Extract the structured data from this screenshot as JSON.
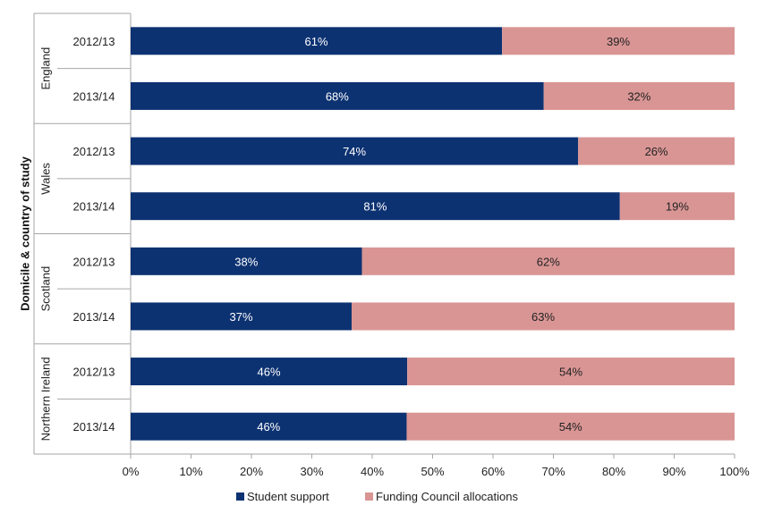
{
  "chart_data": {
    "type": "bar",
    "orientation": "horizontal",
    "stacked": true,
    "percent_stacked": true,
    "ylabel": "Domicile & country of study",
    "xlabel": "",
    "xlim": [
      0,
      100
    ],
    "x_ticks": [
      "0%",
      "10%",
      "20%",
      "30%",
      "40%",
      "50%",
      "60%",
      "70%",
      "80%",
      "90%",
      "100%"
    ],
    "grid": false,
    "legend_position": "bottom",
    "groups": [
      {
        "name": "England",
        "rows": [
          0,
          1
        ]
      },
      {
        "name": "Wales",
        "rows": [
          2,
          3
        ]
      },
      {
        "name": "Scotland",
        "rows": [
          4,
          5
        ]
      },
      {
        "name": "Northern Ireland",
        "rows": [
          6,
          7
        ]
      }
    ],
    "categories": [
      "2012/13",
      "2013/14",
      "2012/13",
      "2013/14",
      "2012/13",
      "2013/14",
      "2012/13",
      "2013/14"
    ],
    "series": [
      {
        "name": "Student support",
        "color": "#0d3272",
        "label_color": "#ffffff",
        "values": [
          61.5,
          68.4,
          74.1,
          81.0,
          38.3,
          36.6,
          45.8,
          45.7
        ],
        "labels": [
          "61%",
          "68%",
          "74%",
          "81%",
          "38%",
          "37%",
          "46%",
          "46%"
        ]
      },
      {
        "name": "Funding Council allocations",
        "color": "#d99594",
        "label_color": "#222222",
        "values": [
          38.5,
          31.6,
          25.9,
          19.0,
          61.7,
          63.4,
          54.2,
          54.3
        ],
        "labels": [
          "39%",
          "32%",
          "26%",
          "19%",
          "62%",
          "63%",
          "54%",
          "54%"
        ]
      }
    ]
  }
}
